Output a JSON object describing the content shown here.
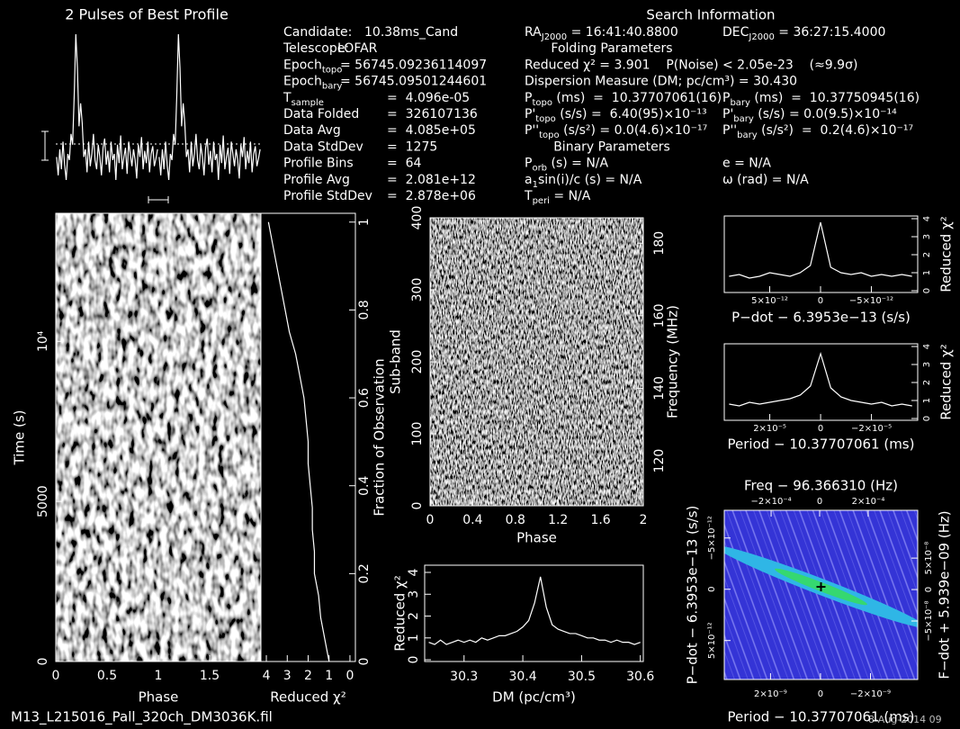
{
  "header": {
    "filename": "M13_L215016_Pall_320ch_DM3036K.fil",
    "date": "8-Aug-2014 09"
  },
  "info": {
    "left": [
      {
        "name": "Candidate:",
        "value": "10.38ms_Cand"
      },
      {
        "name": "Telescope:",
        "value": "LOFAR"
      },
      {
        "name": "Epoch",
        "sub": "topo",
        "value": "= 56745.09236114097"
      },
      {
        "name": "Epoch",
        "sub": "bary",
        "value": "= 56745.09501244601"
      },
      {
        "name": "T",
        "sub": "sample",
        "value": "=  4.096e-05"
      },
      {
        "name": "Data Folded",
        "value": "=  326107136"
      },
      {
        "name": "Data Avg",
        "value": "=  4.085e+05"
      },
      {
        "name": "Data StdDev",
        "value": "=  1275"
      },
      {
        "name": "Profile Bins",
        "value": "=  64"
      },
      {
        "name": "Profile Avg",
        "value": "=  2.081e+12"
      },
      {
        "name": "Profile StdDev",
        "value": "=  2.878e+06"
      }
    ],
    "title": "Search Information",
    "right": [
      [
        {
          "name": "RA",
          "sub": "J2000",
          "value": " = 16:41:40.8800"
        },
        {
          "name": "DEC",
          "sub": "J2000",
          "value": " = 36:27:15.4000"
        }
      ],
      "Folding Parameters",
      [
        {
          "value": "Reduced χ² = 3.901    P(Noise) < 2.05e-23    (≈9.9σ)"
        }
      ],
      [
        {
          "value": "Dispersion Measure (DM; pc/cm³) = 30.430"
        }
      ],
      [
        {
          "name": "P",
          "sub": "topo",
          "value": " (ms)  =  10.37707061(16)"
        },
        {
          "name": "P",
          "sub": "bary",
          "value": " (ms)  =  10.37750945(16)"
        }
      ],
      [
        {
          "name": "P'",
          "sub": "topo",
          "value": " (s/s) =  6.40(95)×10⁻¹³"
        },
        {
          "name": "P'",
          "sub": "bary",
          "value": " (s/s) = 0.0(9.5)×10⁻¹⁴"
        }
      ],
      [
        {
          "name": "P''",
          "sub": "topo",
          "value": " (s/s²) = 0.0(4.6)×10⁻¹⁷"
        },
        {
          "name": "P''",
          "sub": "bary",
          "value": " (s/s²)  =  0.2(4.6)×10⁻¹⁷"
        }
      ],
      "Binary Parameters",
      [
        {
          "name": "P",
          "sub": "orb",
          "value": " (s) = N/A"
        },
        {
          "value": "e = N/A"
        }
      ],
      [
        {
          "name": "a",
          "sub": "1",
          "value": "sin(i)/c (s) = N/A"
        },
        {
          "value": "ω (rad) = N/A"
        }
      ],
      [
        {
          "name": "T",
          "sub": "peri",
          "value": " = N/A"
        }
      ]
    ]
  },
  "chart_data": [
    {
      "type": "profile",
      "title": "2 Pulses of Best Profile",
      "color": "#ffffff",
      "values": [
        20,
        8,
        25,
        12,
        30,
        15,
        5,
        22,
        18,
        35,
        28,
        60,
        100,
        78,
        40,
        55,
        42,
        20,
        25,
        10,
        30,
        14,
        22,
        35,
        18,
        12,
        28,
        20,
        8,
        26,
        32,
        15,
        24,
        10,
        30,
        18,
        22,
        5,
        28,
        16,
        34,
        12,
        20,
        26,
        9,
        30,
        22,
        14,
        25,
        18,
        6,
        28,
        20,
        33,
        12,
        24,
        16,
        30,
        10,
        22,
        27,
        14,
        19,
        25
      ]
    },
    {
      "type": "image",
      "xlabel": "Phase",
      "ylabel": "Time (s)",
      "xlim": [
        0,
        2
      ],
      "xticks": [
        0,
        0.5,
        1,
        1.5
      ],
      "ylim": [
        0,
        14000
      ],
      "yticks": [
        0,
        5000,
        {
          "value": 10000,
          "label": "10⁴"
        }
      ]
    },
    {
      "type": "line",
      "orientation": "horizontal",
      "color": "#ffffff",
      "xlabel": "Fraction of Observation",
      "ylabel": "Reduced χ²",
      "x": [
        0,
        0.05,
        0.1,
        0.15,
        0.2,
        0.25,
        0.3,
        0.35,
        0.4,
        0.45,
        0.5,
        0.55,
        0.6,
        0.65,
        0.7,
        0.75,
        0.8,
        0.85,
        0.9,
        0.95,
        1
      ],
      "values": [
        1.0,
        1.2,
        1.4,
        1.5,
        1.7,
        1.7,
        1.8,
        1.8,
        1.9,
        2.0,
        2.0,
        2.1,
        2.2,
        2.4,
        2.6,
        2.9,
        3.1,
        3.3,
        3.5,
        3.7,
        3.9
      ],
      "xlim": [
        0,
        1.02
      ],
      "xticks": [
        0.2,
        0.4,
        0.6,
        0.8,
        {
          "value": 1,
          "label": "1"
        },
        0
      ],
      "ylim": [
        4.26,
        -0.26
      ],
      "yticks": [
        4,
        3,
        2,
        1,
        0
      ]
    },
    {
      "type": "image",
      "xlabel": "Phase",
      "ylabel": "Sub-band",
      "y2label": "Frequency (MHz)",
      "xlim": [
        0,
        2
      ],
      "xticks": [
        0,
        0.4,
        0.8,
        1.2,
        1.6,
        2
      ],
      "ylim": [
        0,
        400
      ],
      "yticks": [
        0,
        100,
        200,
        300,
        400
      ],
      "y2lim": [
        107.6,
        187
      ],
      "y2ticks": [
        120,
        140,
        160,
        180
      ]
    },
    {
      "type": "line",
      "color": "#ffffff",
      "xlabel": "DM (pc/cm³)",
      "ylabel": "Reduced χ²",
      "x": [
        30.24,
        30.25,
        30.26,
        30.27,
        30.28,
        30.29,
        30.3,
        30.31,
        30.32,
        30.33,
        30.34,
        30.35,
        30.36,
        30.37,
        30.38,
        30.39,
        30.4,
        30.41,
        30.42,
        30.43,
        30.44,
        30.45,
        30.46,
        30.47,
        30.48,
        30.49,
        30.5,
        30.51,
        30.52,
        30.53,
        30.54,
        30.55,
        30.56,
        30.57,
        30.58,
        30.59,
        30.6
      ],
      "values": [
        0.8,
        0.7,
        0.9,
        0.7,
        0.8,
        0.9,
        0.8,
        0.9,
        0.8,
        1.0,
        0.9,
        1.0,
        1.1,
        1.1,
        1.2,
        1.3,
        1.5,
        1.8,
        2.6,
        3.8,
        2.4,
        1.6,
        1.4,
        1.3,
        1.2,
        1.2,
        1.1,
        1.0,
        1.0,
        0.9,
        0.9,
        0.8,
        0.9,
        0.8,
        0.8,
        0.7,
        0.8
      ],
      "xlim": [
        30.233,
        30.605
      ],
      "xticks": [
        30.3,
        30.4,
        30.5,
        30.6
      ],
      "ylim": [
        -0.08,
        4.33
      ],
      "yticks": [
        0,
        1,
        2,
        3,
        4
      ]
    },
    {
      "type": "line",
      "color": "#ffffff",
      "xlabel": "P−dot − 6.3953e−13 (s/s)",
      "ylabel": "Reduced χ²",
      "x": [
        9e-12,
        8e-12,
        7e-12,
        6e-12,
        5e-12,
        4e-12,
        3e-12,
        2e-12,
        1e-12,
        0,
        -1e-12,
        -2e-12,
        -3e-12,
        -4e-12,
        -5e-12,
        -6e-12,
        -7e-12,
        -8e-12,
        -9e-12
      ],
      "values": [
        0.8,
        0.9,
        0.7,
        0.8,
        1.0,
        0.9,
        0.8,
        1.0,
        1.4,
        3.8,
        1.3,
        1.0,
        0.9,
        1.0,
        0.8,
        0.9,
        0.8,
        0.9,
        0.8
      ],
      "xlim": [
        9.47e-12,
        -9.56e-12
      ],
      "xticks": [
        {
          "value": 5e-12,
          "label": "5×10⁻¹²"
        },
        0,
        {
          "value": -5e-12,
          "label": "−5×10⁻¹²"
        }
      ],
      "ylim": [
        -0.1,
        4.15
      ],
      "yticks": [
        0,
        1,
        2,
        3,
        4
      ]
    },
    {
      "type": "line",
      "color": "#ffffff",
      "xlabel": "Period − 10.37707061 (ms)",
      "ylabel": "Reduced χ²",
      "x": [
        3.6e-05,
        3.2e-05,
        2.8e-05,
        2.4e-05,
        2e-05,
        1.6e-05,
        1.2e-05,
        8e-06,
        4e-06,
        0,
        -4e-06,
        -8e-06,
        -1.2e-05,
        -1.6e-05,
        -2e-05,
        -2.4e-05,
        -2.8e-05,
        -3.2e-05,
        -3.6e-05
      ],
      "values": [
        0.8,
        0.7,
        0.9,
        0.8,
        0.9,
        1.0,
        1.1,
        1.3,
        1.8,
        3.6,
        1.7,
        1.2,
        1.0,
        0.9,
        0.8,
        0.9,
        0.7,
        0.8,
        0.7
      ],
      "xlim": [
        3.79e-05,
        -3.82e-05
      ],
      "xticks": [
        {
          "value": 2e-05,
          "label": "2×10⁻⁵"
        },
        0,
        {
          "value": -2e-05,
          "label": "−2×10⁻⁵"
        }
      ],
      "ylim": [
        -0.1,
        4.15
      ],
      "yticks": [
        0,
        1,
        2,
        3,
        4
      ]
    },
    {
      "type": "plane",
      "xlabel": "Period − 10.37707061 (ms)",
      "x2label": "Freq − 96.366310 (Hz)",
      "ylabel": "P−dot − 6.3953e−13 (s/s)",
      "y2label": "F−dot + 5.939e−09 (Hz)",
      "xlim": [
        3.85e-09,
        -3.89e-09
      ],
      "xticks": [
        {
          "value": 2e-09,
          "label": "2×10⁻⁹"
        },
        0,
        {
          "value": -2e-09,
          "label": "−2×10⁻⁹"
        }
      ],
      "x2lim": [
        -0.000393,
        0.000404
      ],
      "x2ticks": [
        {
          "value": -0.0002,
          "label": "−2×10⁻⁴"
        },
        0,
        {
          "value": 0.0002,
          "label": "2×10⁻⁴"
        }
      ],
      "ylim": [
        8.8e-12,
        -7.7e-12
      ],
      "yticks": [
        {
          "value": -5e-12,
          "label": "−5×10⁻¹²"
        },
        0,
        {
          "value": 5e-12,
          "label": "5×10⁻¹²"
        }
      ],
      "y2lim": [
        -1.43e-07,
        1.26e-07
      ],
      "y2ticks": [
        {
          "value": 5e-08,
          "label": "5×10⁻⁸"
        },
        0,
        {
          "value": -5e-08,
          "label": "−5×10⁻⁸"
        }
      ]
    }
  ]
}
